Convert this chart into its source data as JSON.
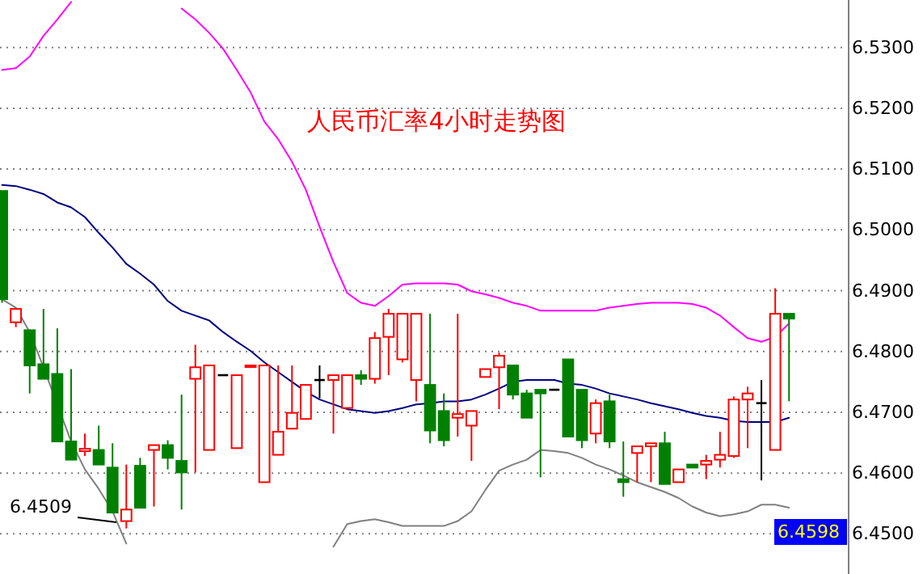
{
  "chart_data": {
    "type": "candlestick",
    "title": "人民币汇率4小时走势图",
    "categories": [
      null,
      null,
      null,
      null,
      null,
      null,
      null,
      null,
      null,
      null,
      null,
      null,
      null,
      null,
      null,
      null,
      null,
      null,
      null,
      null,
      null,
      null,
      null,
      null,
      null,
      null,
      null,
      null,
      null,
      null,
      null,
      null,
      null,
      null,
      null,
      null,
      null,
      null,
      null,
      null,
      null,
      null,
      null,
      null,
      null,
      null,
      null,
      null,
      null,
      null,
      null,
      null,
      null,
      null,
      null,
      null,
      null,
      null
    ],
    "ohlc": [
      [
        6.5064,
        6.5064,
        6.488,
        6.4886
      ],
      [
        6.4848,
        6.487,
        6.484,
        6.487
      ],
      [
        6.4835,
        6.4835,
        6.4731,
        6.4777
      ],
      [
        6.4779,
        6.487,
        6.4755,
        6.4755
      ],
      [
        6.4763,
        6.4838,
        6.4652,
        6.4652
      ],
      [
        6.4652,
        6.4771,
        6.4622,
        6.4622
      ],
      [
        6.4636,
        6.4665,
        6.4628,
        6.464
      ],
      [
        6.4638,
        6.4678,
        6.4614,
        6.4614
      ],
      [
        6.4609,
        6.4649,
        6.4535,
        6.4535
      ],
      [
        6.4521,
        6.4614,
        6.4509,
        6.454
      ],
      [
        6.4612,
        6.4625,
        6.4543,
        6.4543
      ],
      [
        6.4638,
        6.4646,
        6.4545,
        6.4646
      ],
      [
        6.4646,
        6.4654,
        6.4606,
        6.4625
      ],
      [
        6.462,
        6.4729,
        6.454,
        6.4601
      ],
      [
        6.4755,
        6.4811,
        6.4601,
        6.4774
      ],
      [
        6.4638,
        6.4777,
        6.4638,
        6.4777
      ],
      [
        6.4761,
        6.4761,
        6.4761,
        6.4761
      ],
      [
        6.4641,
        6.4761,
        6.4641,
        6.4761
      ],
      [
        6.4776,
        6.4777,
        6.4776,
        6.4777
      ],
      [
        6.4585,
        6.4777,
        6.4585,
        6.4777
      ],
      [
        6.463,
        6.4777,
        6.463,
        6.4668
      ],
      [
        6.4673,
        6.4777,
        6.4673,
        6.4699
      ],
      [
        6.4689,
        6.4745,
        6.4689,
        6.4745
      ],
      [
        6.4753,
        6.4777,
        6.4723,
        6.4753
      ],
      [
        6.4753,
        6.4761,
        6.4665,
        6.4761
      ],
      [
        6.4707,
        6.4761,
        6.4707,
        6.4761
      ],
      [
        6.4761,
        6.4769,
        6.4745,
        6.4755
      ],
      [
        6.4755,
        6.4832,
        6.4747,
        6.4822
      ],
      [
        6.4824,
        6.487,
        6.4761,
        6.4862
      ],
      [
        6.4787,
        6.4862,
        6.4782,
        6.4862
      ],
      [
        6.4753,
        6.4862,
        6.4718,
        6.4862
      ],
      [
        6.4745,
        6.4862,
        6.4649,
        6.467
      ],
      [
        6.4702,
        6.4731,
        6.4644,
        6.4654
      ],
      [
        6.4691,
        6.4862,
        6.466,
        6.4697
      ],
      [
        6.4678,
        6.4702,
        6.462,
        6.4702
      ],
      [
        6.4758,
        6.4771,
        6.4758,
        6.4771
      ],
      [
        6.4774,
        6.4798,
        6.4705,
        6.4793
      ],
      [
        6.4777,
        6.4777,
        6.4721,
        6.4729
      ],
      [
        6.4731,
        6.4737,
        6.4691,
        6.4691
      ],
      [
        6.4737,
        6.4737,
        6.4593,
        6.4731
      ],
      [
        6.4737,
        6.4737,
        6.4737,
        6.4737
      ],
      [
        6.4787,
        6.4787,
        6.466,
        6.466
      ],
      [
        6.4737,
        6.4737,
        6.4641,
        6.4654
      ],
      [
        6.4665,
        6.4721,
        6.4649,
        6.4715
      ],
      [
        6.4718,
        6.4729,
        6.4641,
        6.4652
      ],
      [
        6.459,
        6.4652,
        6.4561,
        6.4585
      ],
      [
        6.4633,
        6.4644,
        6.4585,
        6.4644
      ],
      [
        6.4644,
        6.4649,
        6.4585,
        6.4649
      ],
      [
        6.4649,
        6.4668,
        6.4582,
        6.4582
      ],
      [
        6.4585,
        6.4606,
        6.4585,
        6.4606
      ],
      [
        6.4614,
        6.4614,
        6.4609,
        6.4609
      ],
      [
        6.4614,
        6.463,
        6.459,
        6.462
      ],
      [
        6.4622,
        6.4668,
        6.4609,
        6.463
      ],
      [
        6.4628,
        6.4726,
        6.4625,
        6.4721
      ],
      [
        6.4721,
        6.4742,
        6.4641,
        6.4731
      ],
      [
        6.4715,
        6.4753,
        6.4588,
        6.4715
      ],
      [
        6.4638,
        6.4904,
        6.4638,
        6.4862
      ],
      [
        6.4862,
        6.4862,
        6.4718,
        6.4854
      ]
    ],
    "colors": [
      "#008000",
      "#ff0000",
      "#008000",
      "#008000",
      "#008000",
      "#008000",
      "#ff0000",
      "#008000",
      "#008000",
      "#ff0000",
      "#008000",
      "#ff0000",
      "#008000",
      "#008000",
      "#ff0000",
      "#ff0000",
      "#000000",
      "#ff0000",
      "#ff0000",
      "#ff0000",
      "#ff0000",
      "#ff0000",
      "#ff0000",
      "#000000",
      "#ff0000",
      "#ff0000",
      "#008000",
      "#ff0000",
      "#ff0000",
      "#ff0000",
      "#ff0000",
      "#008000",
      "#008000",
      "#ff0000",
      "#ff0000",
      "#ff0000",
      "#ff0000",
      "#008000",
      "#008000",
      "#008000",
      "#000000",
      "#008000",
      "#008000",
      "#ff0000",
      "#008000",
      "#008000",
      "#ff0000",
      "#ff0000",
      "#008000",
      "#ff0000",
      "#008000",
      "#ff0000",
      "#ff0000",
      "#ff0000",
      "#ff0000",
      "#000000",
      "#ff0000",
      "#008000"
    ],
    "series": [
      {
        "type": "line",
        "color": "#ff00ff",
        "values": [
          6.5263,
          6.5266,
          6.5285,
          6.5319,
          6.5346,
          6.5375,
          null,
          null,
          null,
          null,
          null,
          null,
          null,
          6.5364,
          6.5346,
          6.5324,
          6.5298,
          6.5263,
          6.5226,
          6.5178,
          6.5149,
          6.5112,
          6.5066,
          6.5005,
          6.4947,
          6.4896,
          6.488,
          6.4875,
          6.4891,
          6.491,
          6.4912,
          6.4912,
          6.4912,
          6.491,
          6.4899,
          6.4894,
          6.4888,
          6.488,
          6.4875,
          6.4867,
          6.4867,
          6.4867,
          6.4867,
          6.4867,
          6.4872,
          6.4875,
          6.4878,
          6.488,
          6.488,
          6.488,
          6.4878,
          6.4872,
          6.4859,
          6.484,
          6.4822,
          6.4816,
          6.4824,
          6.4846
        ]
      },
      {
        "type": "line",
        "color": "#000080",
        "values": [
          6.5074,
          6.5072,
          6.5066,
          6.5059,
          6.5045,
          6.5037,
          6.5021,
          6.4995,
          6.4971,
          6.4944,
          6.4928,
          6.491,
          6.4883,
          6.4867,
          6.4859,
          6.4851,
          6.4832,
          6.4816,
          6.4801,
          6.4782,
          6.4766,
          6.475,
          6.4734,
          6.4721,
          6.4713,
          6.4705,
          6.4702,
          6.4699,
          6.4702,
          6.4707,
          6.4713,
          6.4715,
          6.4718,
          6.4718,
          6.4721,
          6.4729,
          6.4739,
          6.475,
          6.4753,
          6.4753,
          6.4753,
          6.4747,
          6.4745,
          6.4739,
          6.4731,
          6.4726,
          6.4721,
          6.4715,
          6.471,
          6.4705,
          6.4699,
          6.4694,
          6.4691,
          6.4686,
          6.4684,
          6.4684,
          6.4684,
          6.4691
        ]
      },
      {
        "type": "line",
        "color": "#808080",
        "values": [
          6.4886,
          6.4872,
          6.4832,
          6.4774,
          6.4713,
          6.4652,
          6.4606,
          6.4574,
          6.4537,
          6.4484,
          null,
          null,
          null,
          null,
          null,
          null,
          null,
          null,
          null,
          null,
          null,
          null,
          null,
          null,
          6.4479,
          6.4516,
          6.4521,
          6.4524,
          6.4519,
          6.4513,
          6.4513,
          6.4513,
          6.4513,
          6.4521,
          6.4537,
          6.4572,
          6.4604,
          6.4614,
          6.4622,
          6.4638,
          6.4636,
          6.4633,
          6.4625,
          6.4614,
          6.4606,
          6.4596,
          6.4585,
          6.4577,
          6.4569,
          6.4559,
          6.4545,
          6.4535,
          6.4529,
          6.4532,
          6.4537,
          6.4548,
          6.4548,
          6.4543
        ]
      }
    ],
    "ylim": [
      6.4434,
      6.5378
    ],
    "yticks": [
      {
        "value": 6.45,
        "label": "6.4500"
      },
      {
        "value": 6.46,
        "label": "6.4600"
      },
      {
        "value": 6.47,
        "label": "6.4700"
      },
      {
        "value": 6.48,
        "label": "6.4800"
      },
      {
        "value": 6.49,
        "label": "6.4900"
      },
      {
        "value": 6.5,
        "label": "6.5000"
      },
      {
        "value": 6.51,
        "label": "6.5100"
      },
      {
        "value": 6.52,
        "label": "6.5200"
      },
      {
        "value": 6.53,
        "label": "6.5300"
      }
    ],
    "grid": "y",
    "tick_labels": "y",
    "annotations": [
      "6.4509",
      "6.4598"
    ]
  }
}
